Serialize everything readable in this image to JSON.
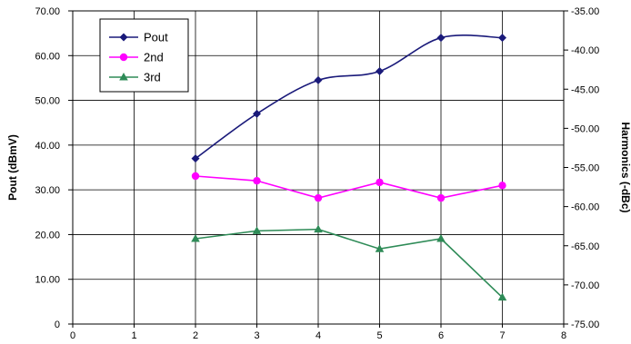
{
  "chart_data": {
    "type": "line",
    "x": [
      2,
      3,
      4,
      5,
      6,
      7
    ],
    "xlim": [
      0,
      8
    ],
    "x_ticks": [
      "0",
      "1",
      "2",
      "3",
      "4",
      "5",
      "6",
      "7",
      "8"
    ],
    "ylabel": "Pout (dBmV)",
    "ylim": [
      0,
      70
    ],
    "y_ticks": [
      "0",
      "10.00",
      "20.00",
      "30.00",
      "40.00",
      "50.00",
      "60.00",
      "70.00"
    ],
    "y2label": "Harmonics (-dBc)",
    "y2lim": [
      -75,
      -35
    ],
    "y2_ticks": [
      "-75.00",
      "-70.00",
      "-65.00",
      "-60.00",
      "-55.00",
      "-50.00",
      "-45.00",
      "-40.00",
      "-35.00"
    ],
    "grid": true,
    "legend_position": "top-left",
    "series": [
      {
        "name": "Pout",
        "axis": "left",
        "marker": "diamond",
        "color": "#1a1a7a",
        "smooth": true,
        "values": [
          37.0,
          47.0,
          54.5,
          56.5,
          64.0,
          64.0
        ]
      },
      {
        "name": "2nd",
        "axis": "right",
        "marker": "circle",
        "color": "#ff00ff",
        "smooth": false,
        "values": [
          -56.1,
          -56.7,
          -58.9,
          -56.9,
          -58.9,
          -57.3
        ]
      },
      {
        "name": "3rd",
        "axis": "right",
        "marker": "triangle",
        "color": "#2e8b57",
        "smooth": false,
        "values": [
          -64.1,
          -63.1,
          -62.9,
          -65.4,
          -64.1,
          -71.6
        ]
      }
    ]
  }
}
